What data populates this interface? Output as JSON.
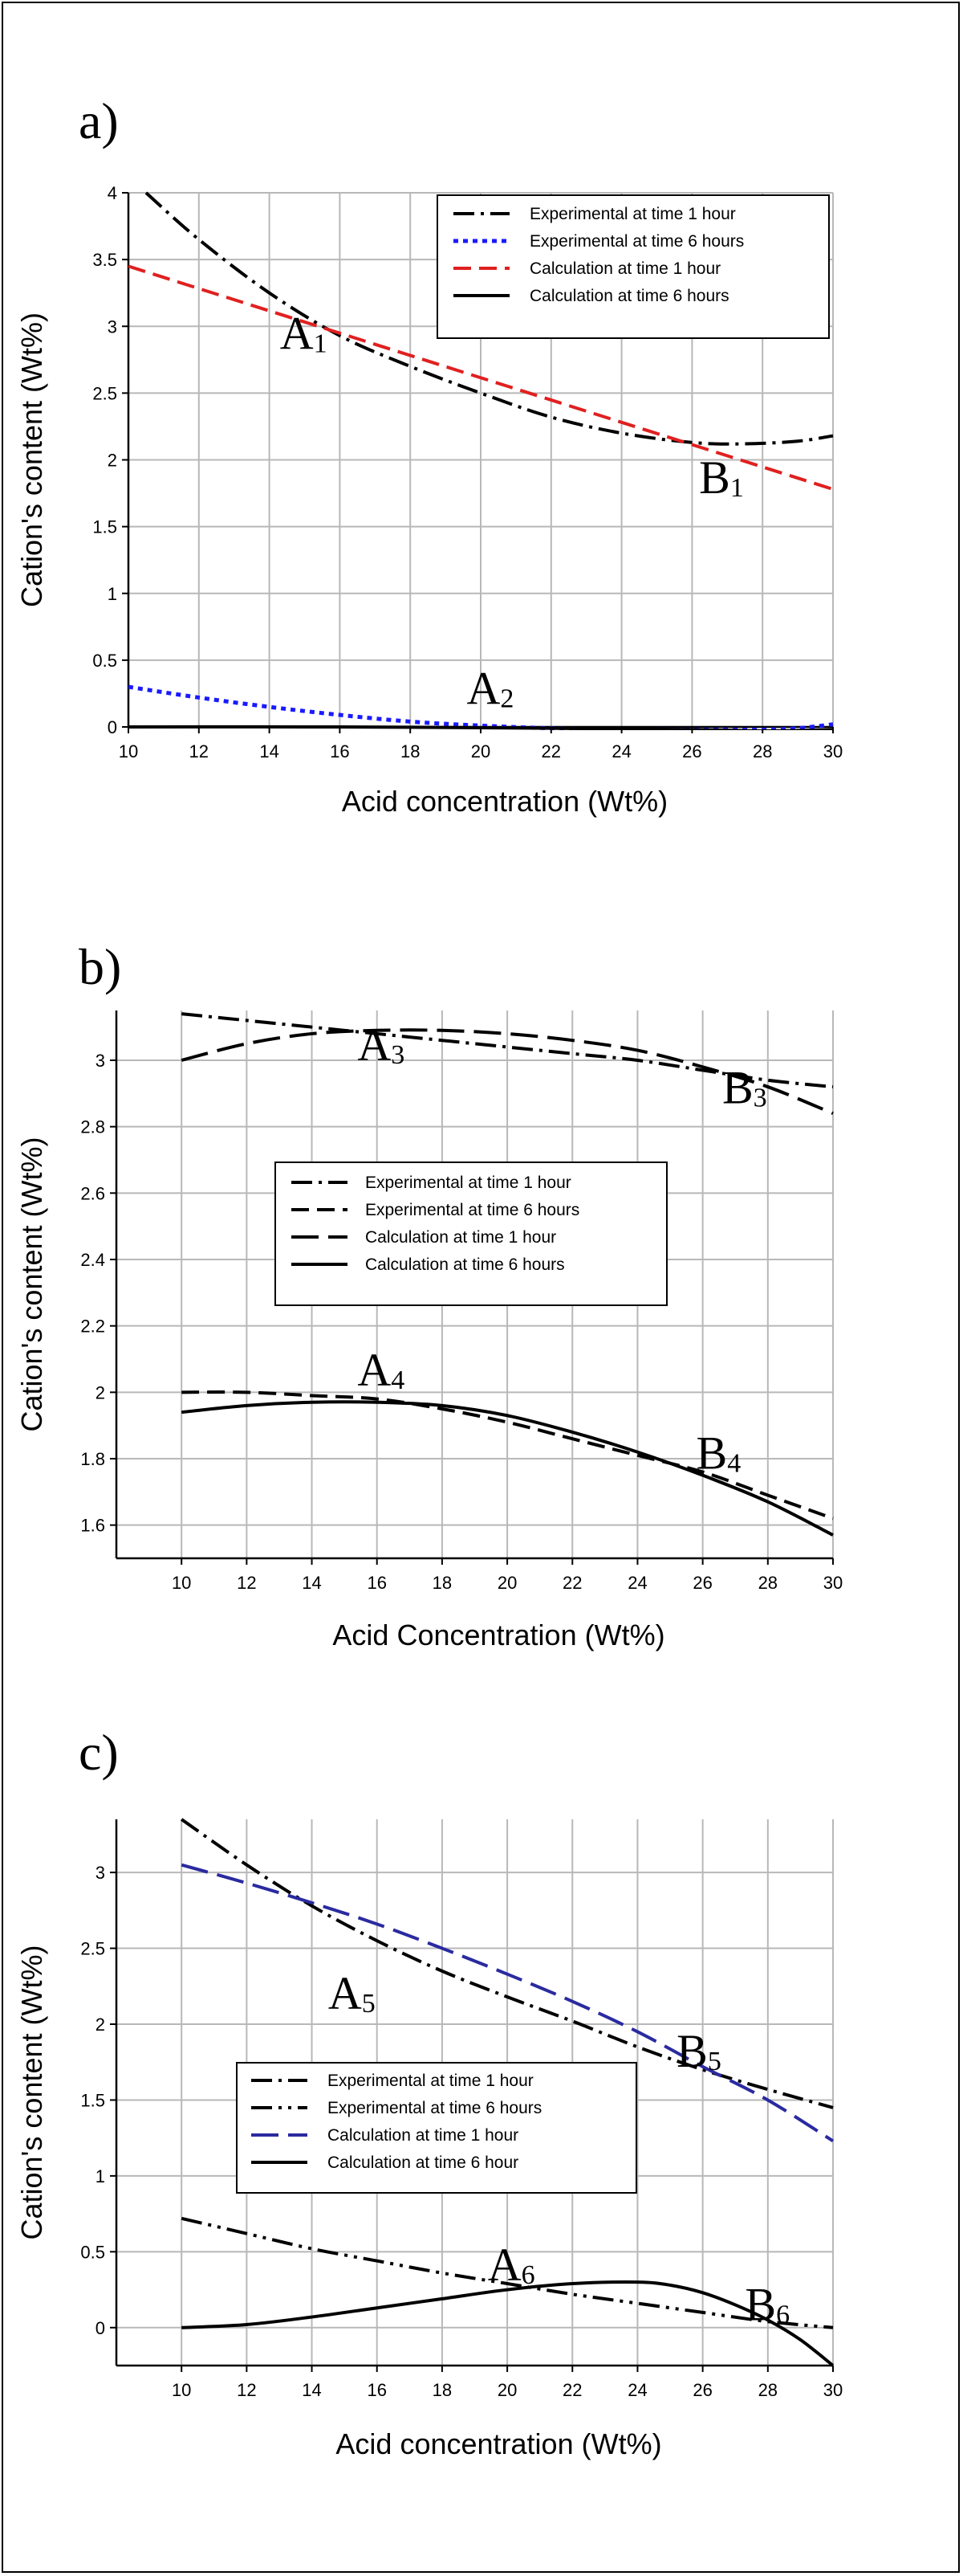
{
  "chart_data": [
    {
      "type": "line",
      "panel_label": "a)",
      "title": "",
      "xlabel": "Acid concentration (Wt%)",
      "ylabel": "Cation's content (Wt%)",
      "xlim": [
        10,
        30
      ],
      "ylim": [
        0,
        4
      ],
      "xticks": [
        "10",
        "12",
        "14",
        "16",
        "18",
        "20",
        "22",
        "24",
        "26",
        "28",
        "30"
      ],
      "yticks": [
        "0",
        "0.5",
        "1",
        "1.5",
        "2",
        "2.5",
        "3",
        "3.5",
        "4"
      ],
      "grid": true,
      "legend_position": "top-right",
      "series": [
        {
          "name": "Experimental at time 1 hour",
          "style": "dashdot",
          "color": "#000000",
          "x": [
            10.5,
            12,
            14,
            16,
            18,
            20,
            22,
            24,
            26,
            27.5,
            29,
            30
          ],
          "y": [
            4.0,
            3.65,
            3.25,
            2.93,
            2.7,
            2.5,
            2.32,
            2.2,
            2.13,
            2.12,
            2.14,
            2.18
          ]
        },
        {
          "name": "Experimental at time 6 hours",
          "style": "dotted",
          "color": "#1a1aff",
          "x": [
            10,
            12,
            14,
            16,
            18,
            20,
            22,
            24,
            26,
            28,
            29,
            30
          ],
          "y": [
            0.3,
            0.22,
            0.15,
            0.09,
            0.04,
            0.01,
            -0.01,
            -0.02,
            -0.02,
            -0.02,
            -0.01,
            0.02
          ]
        },
        {
          "name": "Calculation at time 1 hour",
          "style": "dashed",
          "color": "#e02020",
          "x": [
            10,
            30
          ],
          "y": [
            3.45,
            1.78
          ]
        },
        {
          "name": "Calculation at time 6 hours",
          "style": "solid",
          "color": "#000000",
          "x": [
            10,
            16,
            22,
            26,
            28,
            30
          ],
          "y": [
            0.0,
            0.0,
            -0.01,
            -0.02,
            -0.03,
            -0.02
          ]
        }
      ],
      "annotations": [
        {
          "main": "A",
          "sub": "1",
          "x": 14.3,
          "y": 2.83
        },
        {
          "main": "B",
          "sub": "1",
          "x": 26.2,
          "y": 1.75
        },
        {
          "main": "A",
          "sub": "2",
          "x": 19.6,
          "y": 0.17
        }
      ]
    },
    {
      "type": "line",
      "panel_label": "b)",
      "title": "",
      "xlabel": "Acid Concentration (Wt%)",
      "ylabel": "Cation's content (Wt%)",
      "xlim": [
        8,
        30
      ],
      "ylim": [
        1.5,
        3.15
      ],
      "xticks": [
        "10",
        "12",
        "14",
        "16",
        "18",
        "20",
        "22",
        "24",
        "26",
        "28",
        "30"
      ],
      "yticks": [
        "1.6",
        "1.8",
        "2",
        "2.2",
        "2.4",
        "2.6",
        "2.8",
        "3"
      ],
      "grid": true,
      "legend_position": "center",
      "series": [
        {
          "name": "Experimental  at time 1 hour",
          "style": "dashdot",
          "color": "#000000",
          "x": [
            10,
            12,
            14,
            16,
            18,
            20,
            22,
            24,
            26,
            28,
            30
          ],
          "y": [
            3.14,
            3.12,
            3.1,
            3.08,
            3.06,
            3.04,
            3.02,
            3.0,
            2.97,
            2.94,
            2.92
          ]
        },
        {
          "name": "Experimental  at time 6 hours",
          "style": "dashed",
          "color": "#000000",
          "x": [
            10,
            12,
            14,
            16,
            18,
            20,
            22,
            24,
            26,
            28,
            30
          ],
          "y": [
            2.0,
            2.0,
            1.99,
            1.98,
            1.95,
            1.91,
            1.86,
            1.81,
            1.76,
            1.69,
            1.62
          ]
        },
        {
          "name": "Calculation  at time 1 hour",
          "style": "longdash",
          "color": "#000000",
          "x": [
            10,
            12,
            14,
            16,
            18,
            20,
            22,
            24,
            26,
            28,
            30
          ],
          "y": [
            3.0,
            3.05,
            3.08,
            3.09,
            3.09,
            3.08,
            3.06,
            3.03,
            2.98,
            2.92,
            2.84
          ]
        },
        {
          "name": "Calculation  at time 6 hours",
          "style": "solid",
          "color": "#000000",
          "x": [
            10,
            12,
            14,
            16,
            18,
            20,
            22,
            24,
            26,
            28,
            30
          ],
          "y": [
            1.94,
            1.96,
            1.97,
            1.97,
            1.96,
            1.93,
            1.88,
            1.82,
            1.75,
            1.67,
            1.57
          ]
        }
      ],
      "annotations": [
        {
          "main": "A",
          "sub": "3",
          "x": 15.4,
          "y": 3.0
        },
        {
          "main": "B",
          "sub": "3",
          "x": 26.6,
          "y": 2.87
        },
        {
          "main": "A",
          "sub": "4",
          "x": 15.4,
          "y": 2.02
        },
        {
          "main": "B",
          "sub": "4",
          "x": 25.8,
          "y": 1.77
        }
      ]
    },
    {
      "type": "line",
      "panel_label": "c)",
      "title": "",
      "xlabel": "Acid concentration (Wt%)",
      "ylabel": "Cation's content (Wt%)",
      "xlim": [
        8,
        30
      ],
      "ylim": [
        -0.25,
        3.35
      ],
      "xticks": [
        "10",
        "12",
        "14",
        "16",
        "18",
        "20",
        "22",
        "24",
        "26",
        "28",
        "30"
      ],
      "yticks": [
        "0",
        "0.5",
        "1",
        "1.5",
        "2",
        "2.5",
        "3"
      ],
      "grid": true,
      "legend_position": "center-left",
      "series": [
        {
          "name": "Experimental  at time 1 hour",
          "style": "dashdot",
          "color": "#000000",
          "x": [
            10,
            12,
            14,
            16,
            18,
            20,
            22,
            24,
            26,
            28,
            30
          ],
          "y": [
            3.35,
            3.05,
            2.78,
            2.55,
            2.35,
            2.18,
            2.02,
            1.85,
            1.7,
            1.57,
            1.45
          ]
        },
        {
          "name": "Experimental  at time 6 hours",
          "style": "dashdotdot",
          "color": "#000000",
          "x": [
            10,
            12,
            14,
            16,
            18,
            20,
            22,
            24,
            26,
            28,
            30
          ],
          "y": [
            0.72,
            0.62,
            0.52,
            0.44,
            0.36,
            0.29,
            0.22,
            0.16,
            0.1,
            0.04,
            0.0
          ]
        },
        {
          "name": "Calculation  at time 1 hour",
          "style": "longdash",
          "color": "#2a2aa0",
          "x": [
            10,
            12,
            14,
            16,
            18,
            20,
            22,
            24,
            26,
            28,
            30
          ],
          "y": [
            3.05,
            2.93,
            2.8,
            2.66,
            2.5,
            2.33,
            2.15,
            1.95,
            1.72,
            1.5,
            1.23
          ]
        },
        {
          "name": "Calculation  at time 6 hour",
          "style": "solid",
          "color": "#000000",
          "x": [
            10,
            12,
            14,
            16,
            18,
            20,
            22,
            24,
            25,
            26,
            27,
            28,
            29,
            30
          ],
          "y": [
            0.0,
            0.02,
            0.07,
            0.13,
            0.19,
            0.25,
            0.29,
            0.3,
            0.28,
            0.23,
            0.15,
            0.05,
            -0.08,
            -0.25
          ]
        }
      ],
      "annotations": [
        {
          "main": "A",
          "sub": "5",
          "x": 14.5,
          "y": 2.1
        },
        {
          "main": "B",
          "sub": "5",
          "x": 25.2,
          "y": 1.72
        },
        {
          "main": "A",
          "sub": "6",
          "x": 19.4,
          "y": 0.31
        },
        {
          "main": "B",
          "sub": "6",
          "x": 27.3,
          "y": 0.05
        }
      ]
    }
  ]
}
